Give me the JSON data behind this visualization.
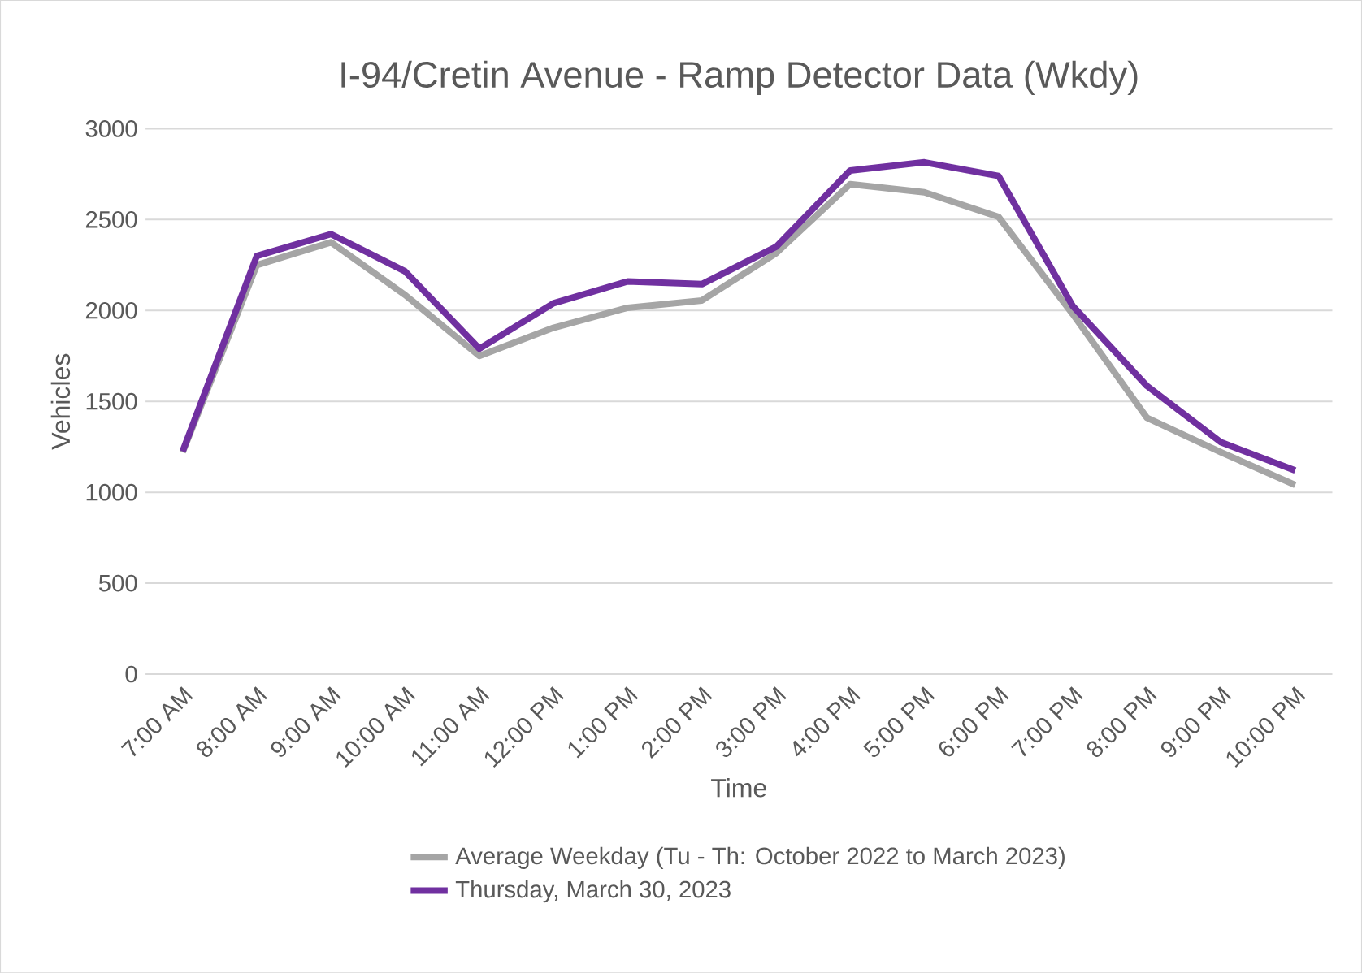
{
  "chart_data": {
    "type": "line",
    "title": "I-94/Cretin Avenue - Ramp Detector Data (Wkdy)",
    "xlabel": "Time",
    "ylabel": "Vehicles",
    "categories": [
      "7:00 AM",
      "8:00 AM",
      "9:00 AM",
      "10:00 AM",
      "11:00 AM",
      "12:00 PM",
      "1:00 PM",
      "2:00 PM",
      "3:00 PM",
      "4:00 PM",
      "5:00 PM",
      "6:00 PM",
      "7:00 PM",
      "8:00 PM",
      "9:00 PM",
      "10:00 PM"
    ],
    "series": [
      {
        "name": "Average Weekday (Tu - Th: October 2022 to March 2023)",
        "color": "#a5a5a5",
        "values": [
          1220,
          2250,
          2375,
          2085,
          1750,
          1905,
          2015,
          2055,
          2315,
          2695,
          2650,
          2515,
          1980,
          1410,
          1220,
          1040
        ]
      },
      {
        "name": "Thursday, March 30, 2023",
        "color": "#7030a0",
        "values": [
          1225,
          2300,
          2420,
          2215,
          1790,
          2040,
          2160,
          2145,
          2350,
          2770,
          2815,
          2740,
          2025,
          1585,
          1275,
          1120
        ]
      }
    ],
    "ylim": [
      0,
      3000
    ],
    "yticks": [
      0,
      500,
      1000,
      1500,
      2000,
      2500,
      3000
    ],
    "grid": "y",
    "legend": "bottom",
    "marker": "none",
    "line_style": "solid"
  }
}
